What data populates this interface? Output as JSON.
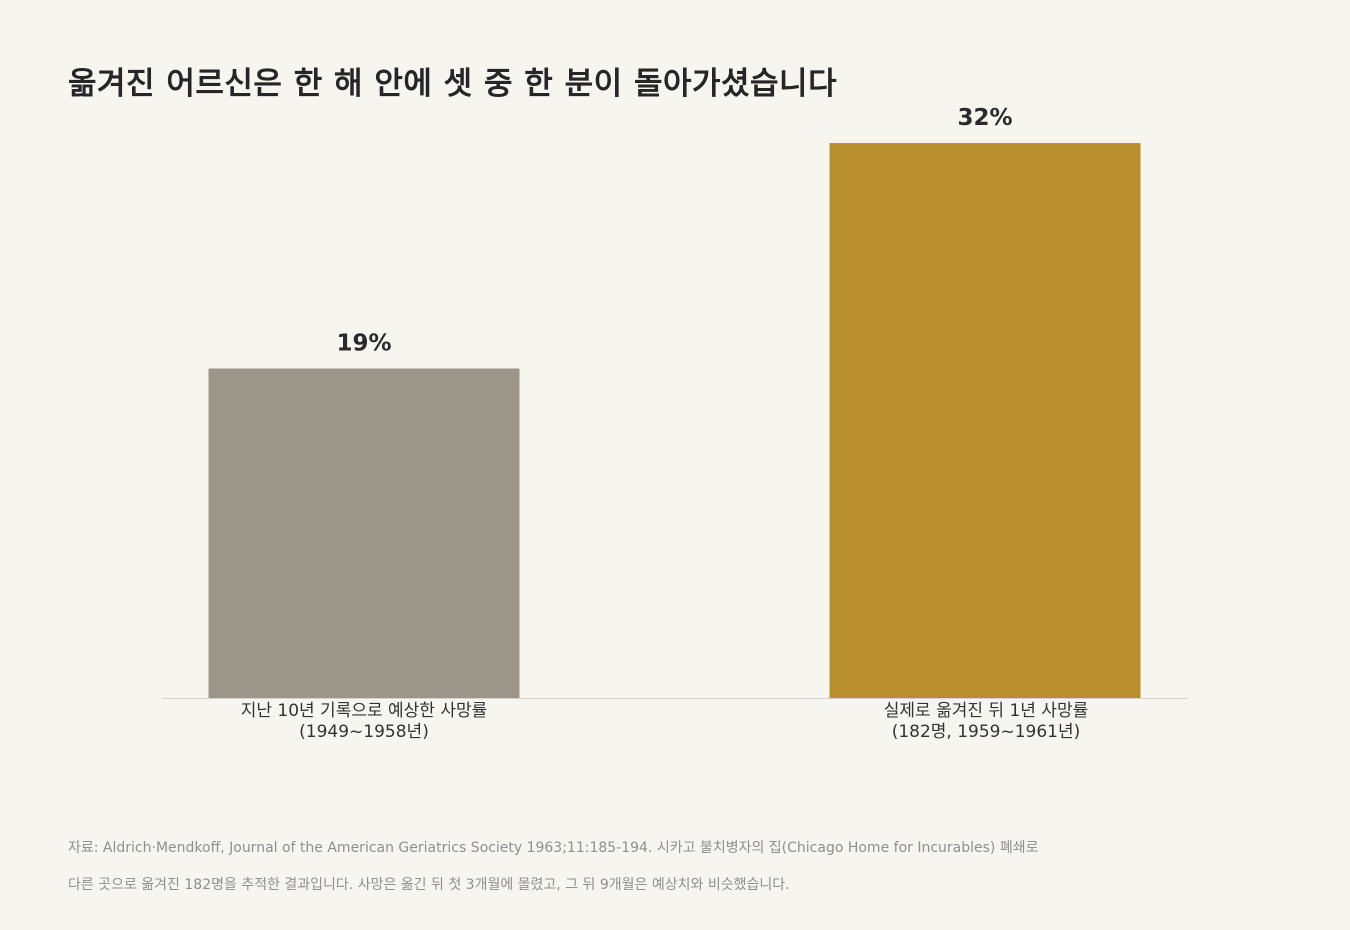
{
  "title": "옮겨진 어르신은 한 해 안에 셋 중 한 분이 돌아가셨습니다",
  "chart_data": {
    "type": "bar",
    "categories": [
      [
        "지난 10년 기록으로 예상한 사망률",
        "(1949~1958년)"
      ],
      [
        "실제로 옮겨진 뒤 1년 사망률",
        "(182명, 1959~1961년)"
      ]
    ],
    "values": [
      19,
      32
    ],
    "value_labels": [
      "19%",
      "32%"
    ],
    "colors": [
      "#9c958a",
      "#b98f2e"
    ],
    "ylim": [
      0,
      35
    ],
    "grid": false,
    "axis_line_color": "#d6d3cb"
  },
  "source": {
    "line1": "자료: Aldrich·Mendkoff, Journal of the American Geriatrics Society 1963;11:185-194. 시카고 불치병자의 집(Chicago Home for Incurables) 폐쇄로",
    "line2": "다른 곳으로 옮겨진 182명을 추적한 결과입니다. 사망은 옮긴 뒤 첫 3개월에 몰렸고, 그 뒤 9개월은 예상치와 비슷했습니다."
  }
}
